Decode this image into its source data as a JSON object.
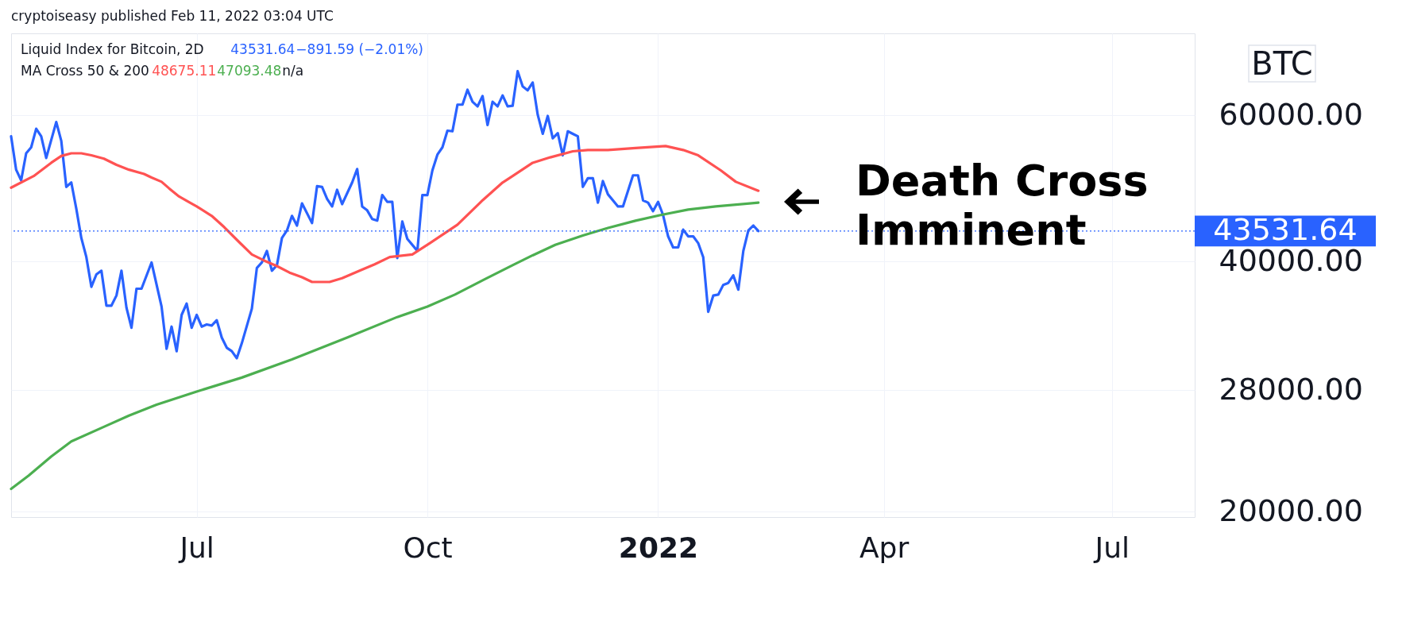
{
  "chart_data": {
    "type": "line",
    "title": "Liquid Index for Bitcoin, 2D",
    "subtitle": "MA Cross 50 & 200",
    "ylabel": "BTC",
    "annotations": [
      "cryptoiseasy published Feb 11, 2022 03:04 UTC",
      "43531.64",
      "−891.59 (−2.01%)",
      "48675.11",
      "47093.48",
      "n/a",
      "Death Cross Imminent"
    ],
    "series": [
      {
        "color": "#2962ff",
        "x": [
          "2021-04-18",
          "2021-04-20",
          "2021-04-22",
          "2021-04-24",
          "2021-04-26",
          "2021-04-28",
          "2021-04-30",
          "2021-05-02",
          "2021-05-06",
          "2021-05-08",
          "2021-05-10",
          "2021-05-12",
          "2021-05-14",
          "2021-05-16",
          "2021-05-18",
          "2021-05-20",
          "2021-05-22",
          "2021-05-24",
          "2021-05-26",
          "2021-05-28",
          "2021-05-30",
          "2021-06-01",
          "2021-06-03",
          "2021-06-05",
          "2021-06-07",
          "2021-06-09",
          "2021-06-13",
          "2021-06-17",
          "2021-06-19",
          "2021-06-21",
          "2021-06-23",
          "2021-06-25",
          "2021-06-27",
          "2021-06-29",
          "2021-07-01",
          "2021-07-03",
          "2021-07-05",
          "2021-07-07",
          "2021-07-09",
          "2021-07-11",
          "2021-07-13",
          "2021-07-15",
          "2021-07-17",
          "2021-07-19",
          "2021-07-23",
          "2021-07-25",
          "2021-07-27",
          "2021-07-29",
          "2021-07-31",
          "2021-08-02",
          "2021-08-04",
          "2021-08-06",
          "2021-08-08",
          "2021-08-10",
          "2021-08-12",
          "2021-08-16",
          "2021-08-18",
          "2021-08-20",
          "2021-08-22",
          "2021-08-24",
          "2021-08-26",
          "2021-08-28",
          "2021-09-01",
          "2021-09-03",
          "2021-09-05",
          "2021-09-07",
          "2021-09-09",
          "2021-09-11",
          "2021-09-13",
          "2021-09-15",
          "2021-09-17",
          "2021-09-19",
          "2021-09-21",
          "2021-09-23",
          "2021-09-27",
          "2021-09-29",
          "2021-10-01",
          "2021-10-03",
          "2021-10-05",
          "2021-10-07",
          "2021-10-09",
          "2021-10-11",
          "2021-10-13",
          "2021-10-15",
          "2021-10-17",
          "2021-10-19",
          "2021-10-21",
          "2021-10-23",
          "2021-10-25",
          "2021-10-27",
          "2021-10-29",
          "2021-10-31",
          "2021-11-02",
          "2021-11-04",
          "2021-11-06",
          "2021-11-08",
          "2021-11-10",
          "2021-11-12",
          "2021-11-14",
          "2021-11-16",
          "2021-11-18",
          "2021-11-20",
          "2021-11-22",
          "2021-11-24",
          "2021-11-26",
          "2021-11-28",
          "2021-11-30",
          "2021-12-02",
          "2021-12-04",
          "2021-12-06",
          "2021-12-08",
          "2021-12-10",
          "2021-12-12",
          "2021-12-16",
          "2021-12-18",
          "2021-12-22",
          "2021-12-24",
          "2021-12-26",
          "2021-12-28",
          "2021-12-30",
          "2022-01-01",
          "2022-01-03",
          "2022-01-05",
          "2022-01-07",
          "2022-01-09",
          "2022-01-11",
          "2022-01-13",
          "2022-01-15",
          "2022-01-17",
          "2022-01-19",
          "2022-01-21",
          "2022-01-23",
          "2022-01-25",
          "2022-01-27",
          "2022-01-29",
          "2022-01-31",
          "2022-02-02",
          "2022-02-04",
          "2022-02-06",
          "2022-02-08",
          "2022-02-10"
        ],
        "values": [
          56600,
          51600,
          50100,
          54000,
          54900,
          57800,
          56600,
          53300,
          58900,
          55900,
          49200,
          49800,
          46300,
          42700,
          40500,
          37300,
          38600,
          39000,
          35400,
          35400,
          36400,
          39000,
          35200,
          33300,
          37100,
          37100,
          39900,
          35300,
          31400,
          33400,
          31200,
          34500,
          35600,
          33300,
          34500,
          33400,
          33600,
          33500,
          34000,
          32400,
          31500,
          31200,
          30600,
          31900,
          35100,
          39300,
          39900,
          41200,
          39000,
          39600,
          42700,
          43600,
          45400,
          44200,
          47000,
          44500,
          49300,
          49200,
          47600,
          46600,
          48800,
          46900,
          49800,
          51700,
          46600,
          46100,
          45000,
          44800,
          48100,
          47200,
          47200,
          40400,
          44700,
          42600,
          41200,
          48100,
          48100,
          51500,
          53800,
          54900,
          57500,
          57400,
          61800,
          61800,
          64400,
          62300,
          61500,
          63300,
          58400,
          62300,
          61500,
          63400,
          61500,
          61600,
          67800,
          65000,
          64300,
          65700,
          60100,
          57000,
          59900,
          56300,
          57100,
          53700,
          57400,
          57000,
          56600,
          49200,
          50400,
          50400,
          47100,
          50000,
          48200,
          46600,
          46600,
          50800,
          50800,
          47400,
          47100,
          46000,
          47200,
          45500,
          42900,
          41600,
          41600,
          43700,
          42900,
          42900,
          42100,
          40500,
          34800,
          36400,
          36500,
          37500,
          37700,
          38500,
          37000,
          41200,
          43600,
          44200,
          43531.64
        ]
      },
      {
        "color": "#ff5252",
        "x": [
          "2021-04-18",
          "2021-04-27",
          "2021-05-04",
          "2021-05-08",
          "2021-05-12",
          "2021-05-16",
          "2021-05-20",
          "2021-05-25",
          "2021-05-30",
          "2021-06-04",
          "2021-06-10",
          "2021-06-13",
          "2021-06-17",
          "2021-06-20",
          "2021-06-24",
          "2021-07-01",
          "2021-07-07",
          "2021-07-12",
          "2021-07-18",
          "2021-07-23",
          "2021-07-28",
          "2021-08-02",
          "2021-08-07",
          "2021-08-12",
          "2021-08-16",
          "2021-08-23",
          "2021-08-28",
          "2021-09-04",
          "2021-09-10",
          "2021-09-16",
          "2021-09-25",
          "2021-10-02",
          "2021-10-13",
          "2021-10-23",
          "2021-10-31",
          "2021-11-04",
          "2021-11-12",
          "2021-11-19",
          "2021-11-28",
          "2021-12-04",
          "2021-12-12",
          "2021-12-23",
          "2022-01-04",
          "2022-01-11",
          "2022-01-17",
          "2022-01-26",
          "2022-02-01",
          "2022-02-10"
        ],
        "values": [
          49100,
          50700,
          52600,
          53600,
          54000,
          54000,
          53700,
          53200,
          52300,
          51600,
          51000,
          50500,
          49900,
          49000,
          47900,
          46600,
          45400,
          44000,
          42200,
          40800,
          40100,
          39500,
          38800,
          38300,
          37800,
          37800,
          38200,
          39000,
          39700,
          40500,
          40800,
          42100,
          44300,
          47400,
          49800,
          50700,
          52600,
          53400,
          54300,
          54500,
          54500,
          54800,
          55100,
          54500,
          53700,
          51500,
          49900,
          48675.11
        ]
      },
      {
        "color": "#4caf50",
        "x": [
          "2021-04-18",
          "2021-04-25",
          "2021-05-04",
          "2021-05-12",
          "2021-05-25",
          "2021-06-04",
          "2021-06-15",
          "2021-07-01",
          "2021-07-19",
          "2021-08-08",
          "2021-08-30",
          "2021-09-19",
          "2021-10-01",
          "2021-10-12",
          "2021-10-24",
          "2021-11-04",
          "2021-11-12",
          "2021-11-21",
          "2021-12-02",
          "2021-12-12",
          "2021-12-23",
          "2022-01-02",
          "2022-01-13",
          "2022-01-24",
          "2022-02-10"
        ],
        "values": [
          21300,
          22100,
          23300,
          24300,
          25300,
          26100,
          26900,
          27900,
          29000,
          30500,
          32400,
          34300,
          35300,
          36500,
          38100,
          39600,
          40700,
          41900,
          43000,
          43900,
          44800,
          45500,
          46200,
          46600,
          47093.48
        ]
      }
    ],
    "xlim": [
      "2021-04-18",
      "2022-08-03"
    ],
    "xticks": [
      {
        "value": "2021-07-01",
        "label": "Jul"
      },
      {
        "value": "2021-10-01",
        "label": "Oct"
      },
      {
        "value": "2022-01-01",
        "label": "2022"
      },
      {
        "value": "2022-04-01",
        "label": "Apr"
      },
      {
        "value": "2022-07-01",
        "label": "Jul"
      }
    ],
    "ylim": [
      19700,
      75300
    ],
    "yticks": [
      {
        "value": 20000,
        "label": "20000.00"
      },
      {
        "value": 28000,
        "label": "28000.00"
      },
      {
        "value": 40000,
        "label": "40000.00"
      },
      {
        "value": 60000,
        "label": "60000.00"
      }
    ],
    "log": "y",
    "grid": true,
    "marker": "none",
    "line_style": "solid",
    "ref_lines": [
      {
        "axis": "y",
        "value": 43531.64,
        "label": "43531.64",
        "color": "#2962ff",
        "line_style": "dotted"
      }
    ]
  }
}
